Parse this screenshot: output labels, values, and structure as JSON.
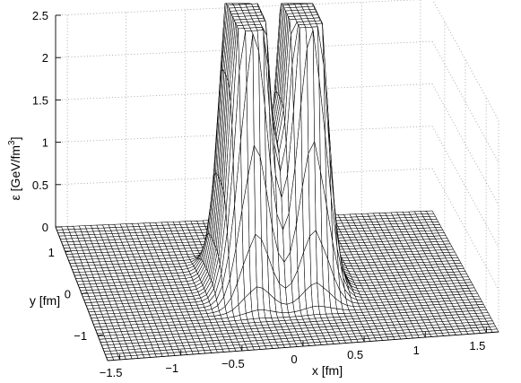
{
  "chart_data": {
    "type": "surface",
    "zlabel": "ε [GeV/fm",
    "zlabel_sup": "3",
    "zlabel_close": "]",
    "xlabel": "x [fm]",
    "ylabel": "y [fm]",
    "x_ticks": [
      "−1.5",
      "−1",
      "−0.5",
      "0",
      "0.5",
      "1",
      "1.5"
    ],
    "y_ticks": [
      "1",
      "0",
      "−1"
    ],
    "z_ticks": [
      "0",
      "0.5",
      "1",
      "1.5",
      "2",
      "2.5"
    ],
    "xlim": [
      -1.6,
      1.6
    ],
    "ylim": [
      -1.6,
      1.6
    ],
    "zlim": [
      0,
      2.5
    ],
    "grid": true,
    "surface_description_values": {
      "ridge_x_positions": [
        -0.25,
        0.25
      ],
      "ridge_y_half_width": 0.55,
      "center_value_at_origin": 0.8,
      "peak_value_clipped_above": 2.5
    }
  }
}
